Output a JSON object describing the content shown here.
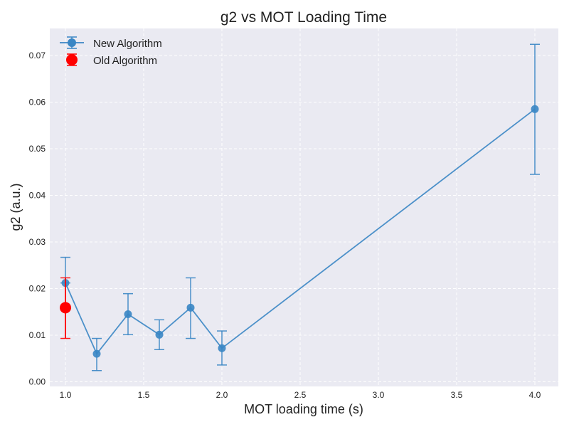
{
  "chart_data": {
    "type": "scatter",
    "title": "g2 vs MOT Loading Time",
    "xlabel": "MOT loading time (s)",
    "ylabel": "g2 (a.u.)",
    "xlim": [
      0.9,
      4.15
    ],
    "ylim": [
      -0.001,
      0.0758
    ],
    "xticks": [
      1.0,
      1.5,
      2.0,
      2.5,
      3.0,
      3.5,
      4.0
    ],
    "xtick_labels": [
      "1.0",
      "1.5",
      "2.0",
      "2.5",
      "3.0",
      "3.5",
      "4.0"
    ],
    "yticks": [
      0.0,
      0.01,
      0.02,
      0.03,
      0.04,
      0.05,
      0.06,
      0.07
    ],
    "ytick_labels": [
      "0.00",
      "0.01",
      "0.02",
      "0.03",
      "0.04",
      "0.05",
      "0.06",
      "0.07"
    ],
    "grid": true,
    "legend_position": "top-left",
    "series": [
      {
        "name": "New Algorithm",
        "color": "#3a86c4",
        "style": "line-marker-errorbar",
        "x": [
          1.0,
          1.2,
          1.4,
          1.6,
          1.8,
          2.0,
          4.0
        ],
        "y": [
          0.0212,
          0.006,
          0.0145,
          0.0101,
          0.0159,
          0.0072,
          0.0585
        ],
        "err_low": [
          0.0,
          0.0036,
          0.0044,
          0.0032,
          0.0066,
          0.0036,
          0.014
        ],
        "err_high": [
          0.0055,
          0.0033,
          0.0044,
          0.0032,
          0.0064,
          0.0037,
          0.0139
        ]
      },
      {
        "name": "Old Algorithm",
        "color": "#ff0000",
        "style": "marker-errorbar",
        "x": [
          1.0
        ],
        "y": [
          0.0159
        ],
        "err_low": [
          0.0066
        ],
        "err_high": [
          0.0064
        ]
      }
    ]
  }
}
